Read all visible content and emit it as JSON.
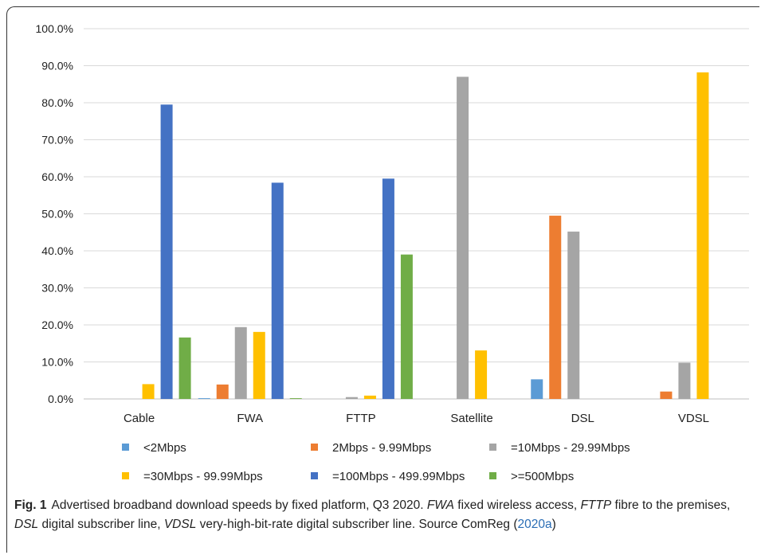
{
  "chart_data": {
    "type": "bar",
    "categories": [
      "Cable",
      "FWA",
      "FTTP",
      "Satellite",
      "DSL",
      "VDSL"
    ],
    "series": [
      {
        "name": "<2Mbps",
        "color": "#5b9bd5",
        "values": [
          0,
          0.2,
          0,
          0,
          5.3,
          0
        ]
      },
      {
        "name": "2Mbps - 9.99Mbps",
        "color": "#ed7d31",
        "values": [
          0,
          3.9,
          0,
          0,
          49.5,
          2.0
        ]
      },
      {
        "name": "=10Mbps - 29.99Mbps",
        "color": "#a5a5a5",
        "values": [
          0,
          19.4,
          0.5,
          87.0,
          45.2,
          9.8
        ]
      },
      {
        "name": "=30Mbps - 99.99Mbps",
        "color": "#ffc000",
        "values": [
          4.0,
          18.1,
          0.9,
          13.1,
          0,
          88.2
        ]
      },
      {
        "name": "=100Mbps - 499.99Mbps",
        "color": "#4472c4",
        "values": [
          79.5,
          58.4,
          59.5,
          0,
          0,
          0
        ]
      },
      {
        "name": ">=500Mbps",
        "color": "#70ad47",
        "values": [
          16.6,
          0.2,
          39.0,
          0,
          0,
          0
        ]
      }
    ],
    "yticks": [
      "0.0%",
      "10.0%",
      "20.0%",
      "30.0%",
      "40.0%",
      "50.0%",
      "60.0%",
      "70.0%",
      "80.0%",
      "90.0%",
      "100.0%"
    ],
    "ylim": [
      0,
      100
    ],
    "grid": true,
    "legend": "bottom"
  },
  "caption": {
    "label": "Fig. 1",
    "text_parts": [
      {
        "t": "Advertised broadband download speeds by fixed platform, Q3 2020. ",
        "i": false
      },
      {
        "t": "FWA",
        "i": true
      },
      {
        "t": "  fixed wireless access, ",
        "i": false
      },
      {
        "t": "FTTP",
        "i": true
      },
      {
        "t": " fibre to the premises, ",
        "i": false
      },
      {
        "t": "DSL",
        "i": true
      },
      {
        "t": " digital subscriber line, ",
        "i": false
      },
      {
        "t": "VDSL",
        "i": true
      },
      {
        "t": " very-high-bit-rate digital subscriber line. Source ComReg (",
        "i": false
      }
    ],
    "citation": "2020a",
    "closing": ")"
  }
}
